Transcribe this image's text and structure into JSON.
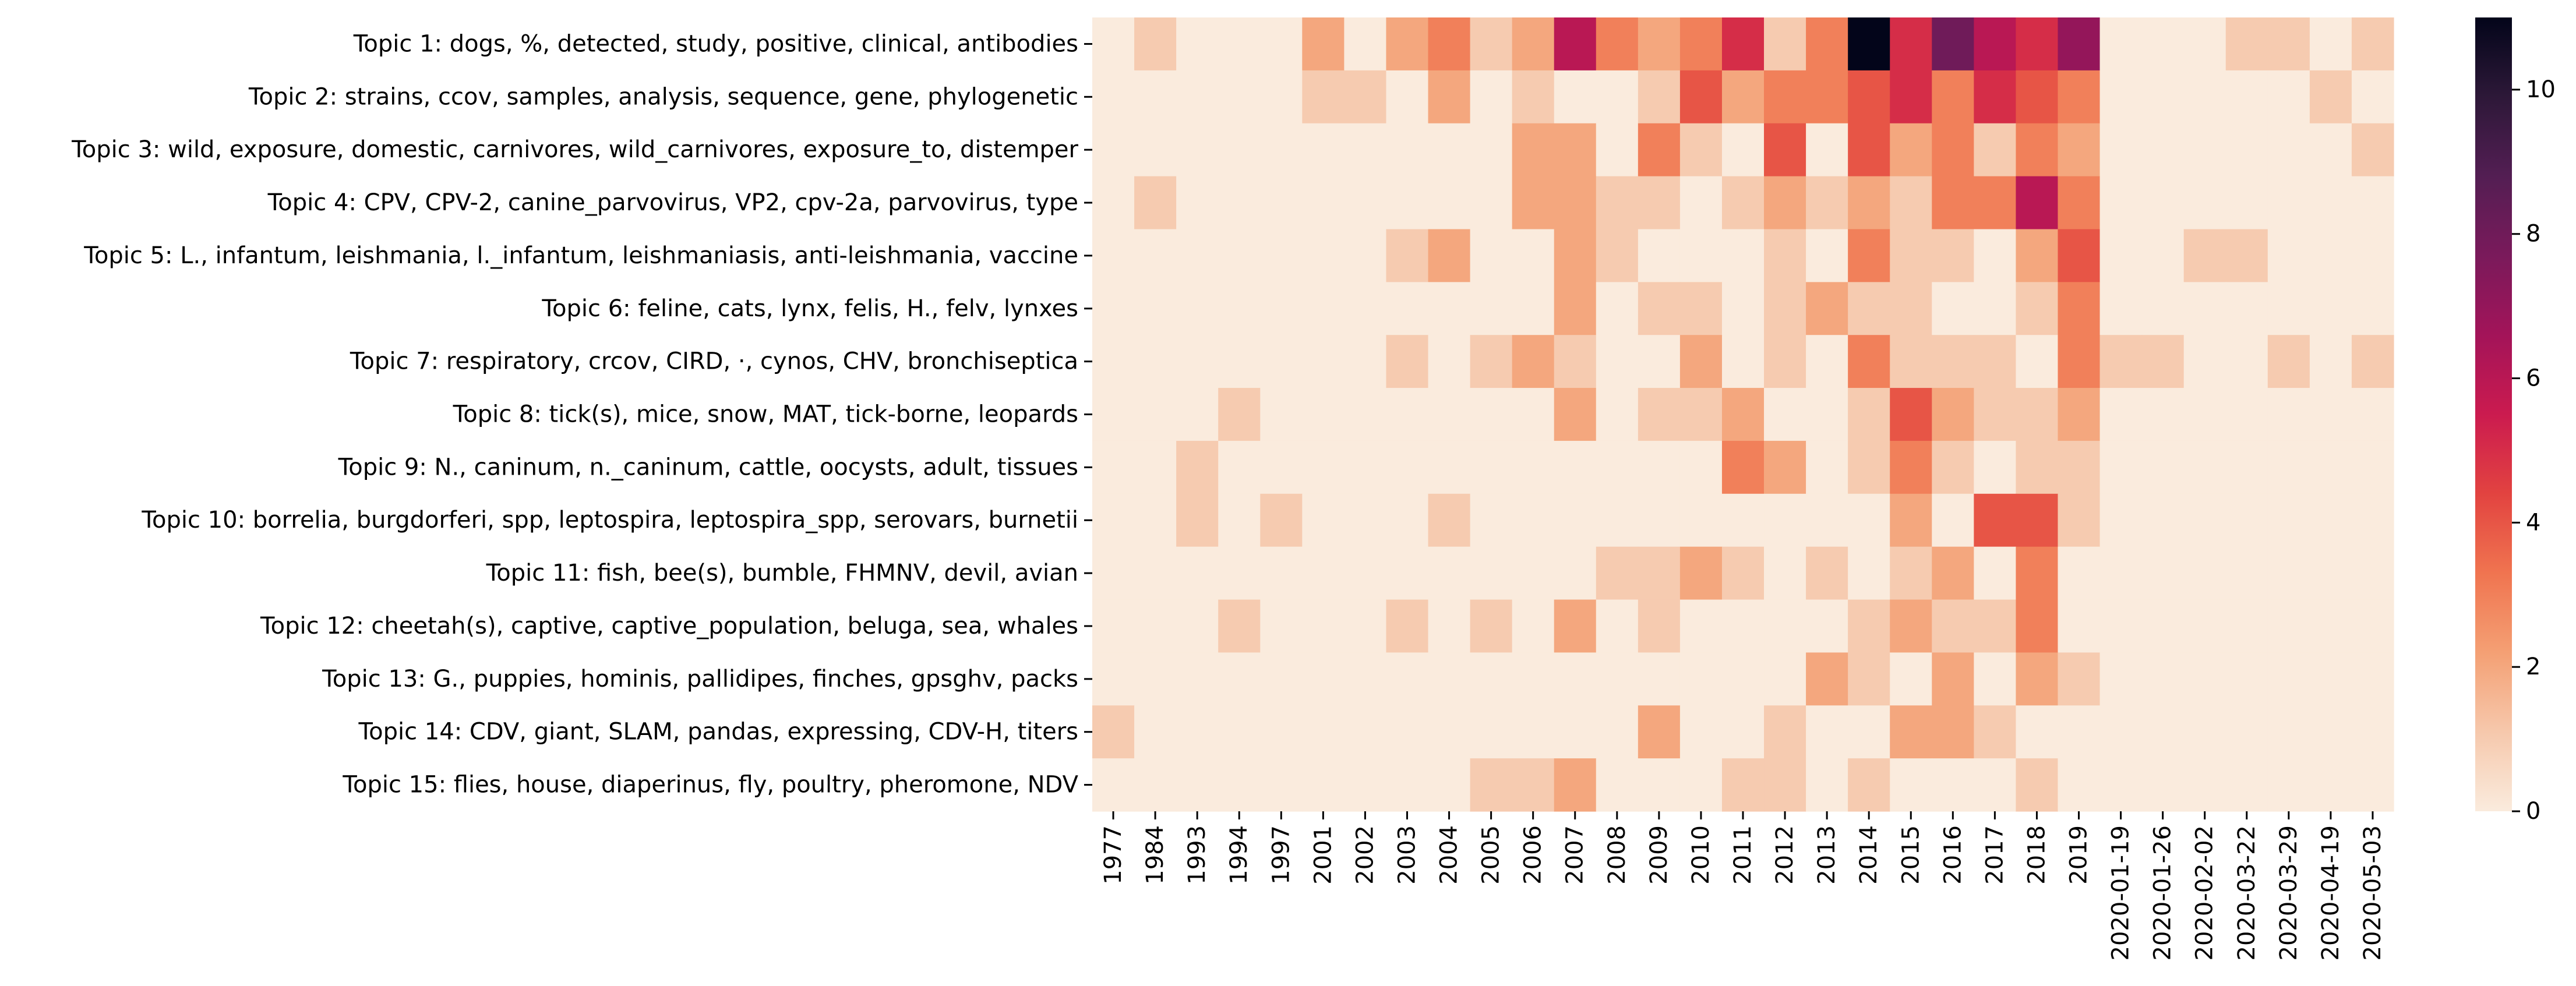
{
  "chart_data": {
    "type": "heatmap",
    "title": "",
    "xlabel": "",
    "ylabel": "",
    "x_categories": [
      "1977",
      "1984",
      "1993",
      "1994",
      "1997",
      "2001",
      "2002",
      "2003",
      "2004",
      "2005",
      "2006",
      "2007",
      "2008",
      "2009",
      "2010",
      "2011",
      "2012",
      "2013",
      "2014",
      "2015",
      "2016",
      "2017",
      "2018",
      "2019",
      "2020-01-19",
      "2020-01-26",
      "2020-02-02",
      "2020-03-22",
      "2020-03-29",
      "2020-04-19",
      "2020-05-03"
    ],
    "y_categories": [
      "Topic 1: dogs, %, detected, study, positive, clinical, antibodies",
      "Topic 2: strains, ccov, samples, analysis, sequence, gene, phylogenetic",
      "Topic 3: wild, exposure, domestic, carnivores, wild_carnivores, exposure_to, distemper",
      "Topic 4: CPV, CPV-2, canine_parvovirus, VP2, cpv-2a, parvovirus, type",
      "Topic 5: L., infantum, leishmania, l._infantum, leishmaniasis, anti-leishmania, vaccine",
      "Topic 6: feline, cats, lynx, felis, H., felv, lynxes",
      "Topic 7: respiratory, crcov, CIRD, ·, cynos, CHV, bronchiseptica",
      "Topic 8: tick(s), mice, snow, MAT, tick-borne, leopards",
      "Topic 9: N., caninum, n._caninum, cattle, oocysts, adult, tissues",
      "Topic 10: borrelia, burgdorferi, spp, leptospira, leptospira_spp, serovars, burnetii",
      "Topic 11: fish, bee(s), bumble, FHMNV, devil, avian",
      "Topic 12: cheetah(s), captive, captive_population, beluga, sea, whales",
      "Topic 13: G., puppies, hominis, pallidipes, finches, gpsghv, packs",
      "Topic 14: CDV, giant, SLAM, pandas, expressing, CDV-H, titers",
      "Topic 15: flies, house, diaperinus, fly, poultry, pheromone, NDV"
    ],
    "values": [
      [
        0,
        1,
        0,
        0,
        0,
        2,
        0,
        2,
        3,
        1,
        2,
        6,
        3,
        2,
        3,
        5,
        1,
        3,
        11,
        5,
        8,
        6,
        5,
        7,
        0,
        0,
        0,
        1,
        1,
        0,
        1
      ],
      [
        0,
        0,
        0,
        0,
        0,
        1,
        1,
        0,
        2,
        0,
        1,
        0,
        0,
        1,
        4,
        2,
        3,
        3,
        4,
        5,
        3,
        5,
        4,
        3,
        0,
        0,
        0,
        0,
        0,
        1,
        0
      ],
      [
        0,
        0,
        0,
        0,
        0,
        0,
        0,
        0,
        0,
        0,
        2,
        2,
        0,
        3,
        1,
        0,
        4,
        0,
        4,
        2,
        3,
        1,
        3,
        2,
        0,
        0,
        0,
        0,
        0,
        0,
        1
      ],
      [
        0,
        1,
        0,
        0,
        0,
        0,
        0,
        0,
        0,
        0,
        2,
        2,
        1,
        1,
        0,
        1,
        2,
        1,
        2,
        1,
        3,
        3,
        6,
        3,
        0,
        0,
        0,
        0,
        0,
        0,
        0
      ],
      [
        0,
        0,
        0,
        0,
        0,
        0,
        0,
        1,
        2,
        0,
        0,
        2,
        1,
        0,
        0,
        0,
        1,
        0,
        3,
        1,
        1,
        0,
        2,
        4,
        0,
        0,
        1,
        1,
        0,
        0,
        0
      ],
      [
        0,
        0,
        0,
        0,
        0,
        0,
        0,
        0,
        0,
        0,
        0,
        2,
        0,
        1,
        1,
        0,
        1,
        2,
        1,
        1,
        0,
        0,
        1,
        3,
        0,
        0,
        0,
        0,
        0,
        0,
        0
      ],
      [
        0,
        0,
        0,
        0,
        0,
        0,
        0,
        1,
        0,
        1,
        2,
        1,
        0,
        0,
        2,
        0,
        1,
        0,
        3,
        1,
        1,
        1,
        0,
        3,
        1,
        1,
        0,
        0,
        1,
        0,
        1
      ],
      [
        0,
        0,
        0,
        1,
        0,
        0,
        0,
        0,
        0,
        0,
        0,
        2,
        0,
        1,
        1,
        2,
        0,
        0,
        1,
        4,
        2,
        1,
        1,
        2,
        0,
        0,
        0,
        0,
        0,
        0,
        0
      ],
      [
        0,
        0,
        1,
        0,
        0,
        0,
        0,
        0,
        0,
        0,
        0,
        0,
        0,
        0,
        0,
        3,
        2,
        0,
        1,
        3,
        1,
        0,
        1,
        1,
        0,
        0,
        0,
        0,
        0,
        0,
        0
      ],
      [
        0,
        0,
        1,
        0,
        1,
        0,
        0,
        0,
        1,
        0,
        0,
        0,
        0,
        0,
        0,
        0,
        0,
        0,
        0,
        2,
        0,
        4,
        4,
        1,
        0,
        0,
        0,
        0,
        0,
        0,
        0
      ],
      [
        0,
        0,
        0,
        0,
        0,
        0,
        0,
        0,
        0,
        0,
        0,
        0,
        1,
        1,
        2,
        1,
        0,
        1,
        0,
        1,
        2,
        0,
        3,
        0,
        0,
        0,
        0,
        0,
        0,
        0,
        0
      ],
      [
        0,
        0,
        0,
        1,
        0,
        0,
        0,
        1,
        0,
        1,
        0,
        2,
        0,
        1,
        0,
        0,
        0,
        0,
        1,
        2,
        1,
        1,
        3,
        0,
        0,
        0,
        0,
        0,
        0,
        0,
        0
      ],
      [
        0,
        0,
        0,
        0,
        0,
        0,
        0,
        0,
        0,
        0,
        0,
        0,
        0,
        0,
        0,
        0,
        0,
        2,
        1,
        0,
        2,
        0,
        2,
        1,
        0,
        0,
        0,
        0,
        0,
        0,
        0
      ],
      [
        1,
        0,
        0,
        0,
        0,
        0,
        0,
        0,
        0,
        0,
        0,
        0,
        0,
        2,
        0,
        0,
        1,
        0,
        0,
        2,
        2,
        1,
        0,
        0,
        0,
        0,
        0,
        0,
        0,
        0,
        0
      ],
      [
        0,
        0,
        0,
        0,
        0,
        0,
        0,
        0,
        0,
        1,
        1,
        2,
        0,
        0,
        0,
        1,
        1,
        0,
        1,
        0,
        0,
        0,
        1,
        0,
        0,
        0,
        0,
        0,
        0,
        0,
        0
      ]
    ],
    "colorbar": {
      "range": [
        0,
        11
      ],
      "ticks": [
        "0",
        "2",
        "4",
        "6",
        "8",
        "10"
      ],
      "colormap": "rocket_r"
    },
    "legend_placement": "right",
    "grid": false
  }
}
